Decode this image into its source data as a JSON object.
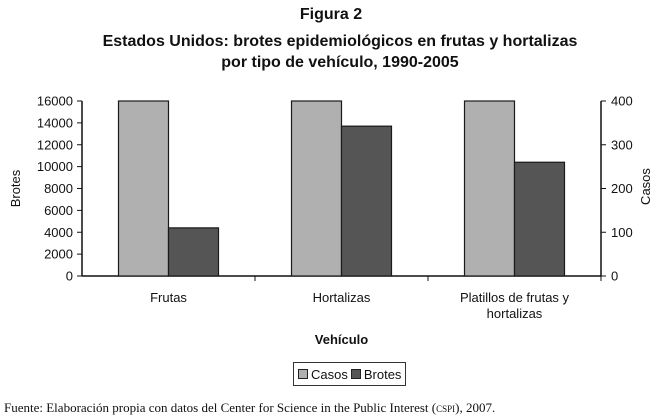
{
  "figure_label": "Figura 2",
  "title_line1": "Estados Unidos: brotes epidemiológicos en frutas y hortalizas",
  "title_line2": "por tipo de vehículo, 1990-2005",
  "source": {
    "prefix": "Fuente: Elaboración propia con datos del Center for Science in the Public Interest (",
    "abbr": "cspi",
    "suffix": "), 2007."
  },
  "colors": {
    "casos": "#b0b0b0",
    "brotes": "#555555"
  },
  "chart_data": {
    "type": "bar",
    "title": "Estados Unidos: brotes epidemiológicos en frutas y hortalizas por tipo de vehículo, 1990-2005",
    "xlabel": "Vehículo",
    "ylabel": "Brotes",
    "y2label": "Casos",
    "categories": [
      [
        "Frutas"
      ],
      [
        "Hortalizas"
      ],
      [
        "Platillos de frutas y",
        "hortalizas"
      ]
    ],
    "ylim": [
      0,
      16000
    ],
    "y2lim": [
      0,
      400
    ],
    "yticks": [
      "0",
      "2000",
      "4000",
      "6000",
      "8000",
      "10000",
      "12000",
      "14000",
      "16000"
    ],
    "y2ticks": [
      "0",
      "100",
      "200",
      "300",
      "400"
    ],
    "series": [
      {
        "name": "Casos",
        "axis": "left",
        "values": [
          16000,
          16000,
          16000
        ]
      },
      {
        "name": "Brotes",
        "axis": "left",
        "values": [
          4400,
          13700,
          10400
        ]
      }
    ],
    "legend": "bottom",
    "grid": false
  }
}
